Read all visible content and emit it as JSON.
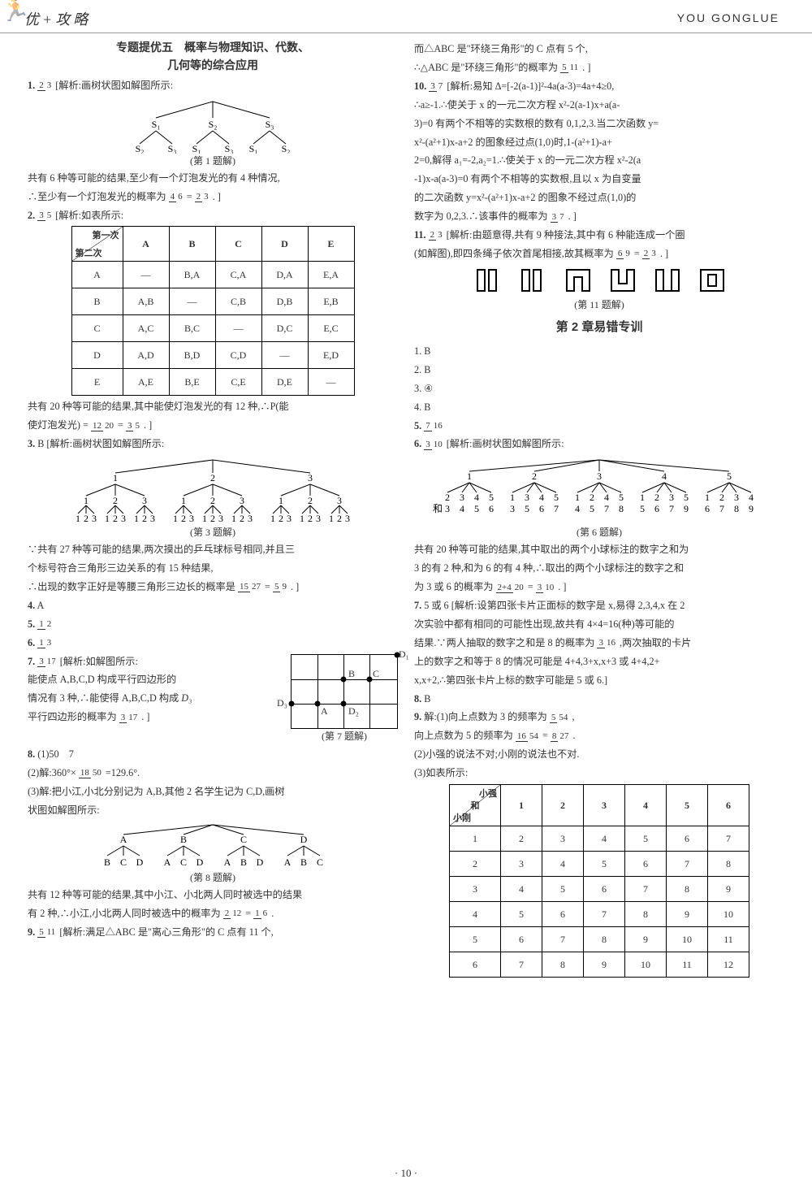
{
  "header": {
    "brand": "优+攻略",
    "roman": "YOU GONGLUE"
  },
  "left": {
    "title1": "专题提优五　概率与物理知识、代数、",
    "title2": "几何等的综合应用",
    "q1": {
      "num": "1.",
      "ans": "2/3",
      "txt": "[解析:画树状图如解图所示:"
    },
    "tree1": {
      "caption": "(第 1 题解)"
    },
    "q1b": "共有 6 种等可能的结果,至少有一个灯泡发光的有 4 种情况,",
    "q1c": "∴至少有一个灯泡发光的概率为 4/6 = 2/3 . ]",
    "q2": {
      "num": "2.",
      "ans": "3/5",
      "txt": "[解析:如表所示:"
    },
    "table2": {
      "th": [
        "第一次\\第二次",
        "A",
        "B",
        "C",
        "D",
        "E"
      ],
      "rows": [
        [
          "A",
          "—",
          "B,A",
          "C,A",
          "D,A",
          "E,A"
        ],
        [
          "B",
          "A,B",
          "—",
          "C,B",
          "D,B",
          "E,B"
        ],
        [
          "C",
          "A,C",
          "B,C",
          "—",
          "D,C",
          "E,C"
        ],
        [
          "D",
          "A,D",
          "B,D",
          "C,D",
          "—",
          "E,D"
        ],
        [
          "E",
          "A,E",
          "B,E",
          "C,E",
          "D,E",
          "—"
        ]
      ]
    },
    "q2b": "共有 20 种等可能的结果,其中能使灯泡发光的有 12 种,∴P(能",
    "q2c": "使灯泡发光) = 12/20 = 3/5 . ]",
    "q3": {
      "num": "3.",
      "ans": "B",
      "txt": "[解析:画树状图如解图所示:"
    },
    "tree3": {
      "caption": "(第 3 题解)"
    },
    "q3b": "∵共有 27 种等可能的结果,两次摸出的乒乓球标号相同,并且三",
    "q3c": "个标号符合三角形三边关系的有 15 种结果,",
    "q3d": "∴出现的数字正好是等腰三角形三边长的概率是 15/27 = 5/9 . ]",
    "q4": {
      "num": "4.",
      "ans": "A"
    },
    "q5": {
      "num": "5.",
      "ans": "1/2"
    },
    "q6": {
      "num": "6.",
      "ans": "1/3"
    },
    "q7": {
      "num": "7.",
      "ans": "3/17",
      "txt": "[解析:如解图所示:"
    },
    "q7b": "能使点 A,B,C,D 构成平行四边形的",
    "q7c": "情况有 3 种,∴能使得 A,B,C,D 构成",
    "q7d": "平行四边形的概率为 3/17 . ]",
    "grid7": {
      "caption": "(第 7 题解)",
      "B": "B",
      "C": "C",
      "A": "A",
      "D1": "D₁",
      "D2": "D₂",
      "D3": "D₃"
    },
    "q8": {
      "num": "8.",
      "a": "(1)50　7"
    },
    "q8b": "(2)解:360°× 18/50 =129.6°.",
    "q8c": "(3)解:把小江,小北分别记为 A,B,其他 2 名学生记为 C,D,画树",
    "q8d": "状图如解图所示:",
    "tree8": {
      "caption": "(第 8 题解)"
    },
    "q8e": "共有 12 种等可能的结果,其中小江、小北两人同时被选中的结果",
    "q8f": "有 2 种,∴小江,小北两人同时被选中的概率为 2/12 = 1/6 .",
    "q9": {
      "num": "9.",
      "ans": "5/11",
      "txt": "[解析:满足△ABC 是\"离心三角形\"的 C 点有 11 个,"
    }
  },
  "right": {
    "q9b": "而△ABC 是\"环绕三角形\"的 C 点有 5 个,",
    "q9c": "∴△ABC 是\"环绕三角形\"的概率为 5/11 . ]",
    "q10": {
      "num": "10.",
      "ans": "3/7",
      "txt": "[解析:易知 Δ=[-2(a-1)]²-4a(a-3)=4a+4≥0,"
    },
    "q10b": "∴a≥-1.∴使关于 x 的一元二次方程 x²-2(a-1)x+a(a-",
    "q10c": "3)=0 有两个不相等的实数根的数有 0,1,2,3.当二次函数 y=",
    "q10d": "x²-(a²+1)x-a+2 的图象经过点(1,0)时,1-(a²+1)-a+",
    "q10e": "2=0,解得 a₁=-2,a₂=1.∴使关于 x 的一元二次方程 x²-2(a",
    "q10f": "-1)x-a(a-3)=0 有两个不相等的实数根,且以 x 为自变量",
    "q10g": "的二次函数 y=x²-(a²+1)x-a+2 的图象不经过点(1,0)的",
    "q10h": "数字为 0,2,3.∴该事件的概率为 3/7 . ]",
    "q11": {
      "num": "11.",
      "ans": "2/3",
      "txt": "[解析:由题意得,共有 9 种接法,其中有 6 种能连成一个圈"
    },
    "q11b": "(如解图),即四条绳子依次首尾相接,故其概率为 6/9 = 2/3 . ]",
    "shapes": {
      "caption": "(第 11 题解)",
      "glyphs": "⎡⎦ ⎣⎤ ⎡⎤ ⎣⎦ ⎡⎤ ⎣⎦"
    },
    "chapter": "第 2 章易错专训",
    "a": [
      "1. B",
      "2. B",
      "3. ④",
      "4. B"
    ],
    "a5": {
      "num": "5.",
      "ans": "7/16"
    },
    "a6": {
      "num": "6.",
      "ans": "3/10",
      "txt": "[解析:画树状图如解图所示:"
    },
    "tree6": {
      "caption": "(第 6 题解)"
    },
    "a6b": "共有 20 种等可能的结果,其中取出的两个小球标注的数字之和为",
    "a6c": "3 的有 2 种,和为 6 的有 4 种,∴取出的两个小球标注的数字之和",
    "a6d": "为 3 或 6 的概率为 (2+4)/20 = 3/10 . ]",
    "a7": {
      "num": "7.",
      "ans": "5 或 6",
      "txt": "[解析:设第四张卡片正面标的数字是 x,易得 2,3,4,x 在 2"
    },
    "a7b": "次实验中都有相同的可能性出现,故共有 4×4=16(种)等可能的",
    "a7c": "结果.∵两人抽取的数字之和是 8 的概率为 3/16 ,两次抽取的卡片",
    "a7d": "上的数字之和等于 8 的情况可能是 4+4,3+x,x+3 或 4+4,2+",
    "a7e": "x,x+2,∴第四张卡片上标的数字可能是 5 或 6.]",
    "a8": {
      "num": "8.",
      "ans": "B"
    },
    "a9": {
      "num": "9.",
      "txt": "解:(1)向上点数为 3 的频率为 5/54 ,"
    },
    "a9b": "向上点数为 5 的频率为 16/54 = 8/27 .",
    "a9c": "(2)小强的说法不对;小刚的说法也不对.",
    "a9d": "(3)如表所示:",
    "table9": {
      "th": [
        "小强\\和\\小刚",
        "1",
        "2",
        "3",
        "4",
        "5",
        "6"
      ],
      "rows": [
        [
          "1",
          "2",
          "3",
          "4",
          "5",
          "6",
          "7"
        ],
        [
          "2",
          "3",
          "4",
          "5",
          "6",
          "7",
          "8"
        ],
        [
          "3",
          "4",
          "5",
          "6",
          "7",
          "8",
          "9"
        ],
        [
          "4",
          "5",
          "6",
          "7",
          "8",
          "9",
          "10"
        ],
        [
          "5",
          "6",
          "7",
          "8",
          "9",
          "10",
          "11"
        ],
        [
          "6",
          "7",
          "8",
          "9",
          "10",
          "11",
          "12"
        ]
      ]
    }
  },
  "footer": "· 10 ·",
  "col_widths": {
    "t2_first": 62,
    "t2_rest": 56,
    "t9_first": 62,
    "t9_rest": 50
  }
}
